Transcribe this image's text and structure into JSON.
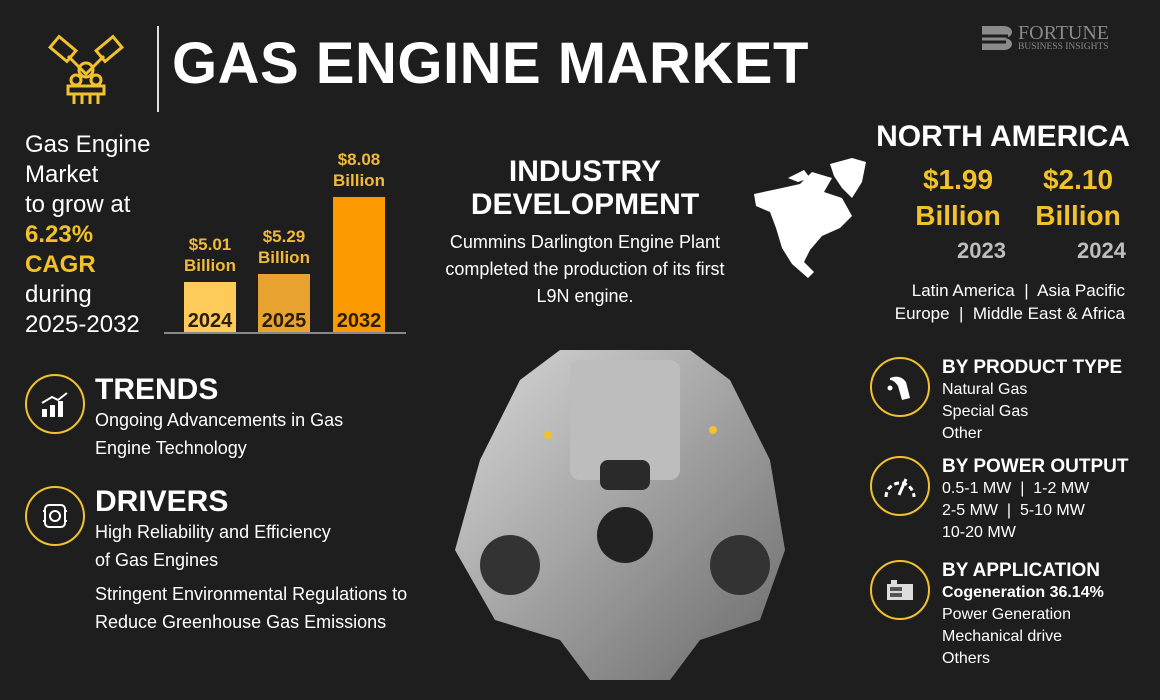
{
  "header": {
    "title": "GAS ENGINE MARKET",
    "logo_line1": "FORTUNE",
    "logo_line2": "BUSINESS INSIGHTS",
    "icon": "engine-icon"
  },
  "intro": {
    "line1": "Gas Engine",
    "line2": "Market",
    "line3": "to grow at",
    "cagr": "6.23%",
    "cagr_label": "CAGR",
    "line4": "during",
    "period": "2025-2032"
  },
  "chart_data": {
    "type": "bar",
    "categories": [
      "2024",
      "2025",
      "2032"
    ],
    "values": [
      5.01,
      5.29,
      8.08
    ],
    "labels": [
      "$5.01 Billion",
      "$5.29 Billion",
      "$8.08 Billion"
    ],
    "colors": [
      "#fecb5a",
      "#e8a22f",
      "#fb9a00"
    ],
    "unit": "Billion USD"
  },
  "industry": {
    "title_line1": "INDUSTRY",
    "title_line2": "DEVELOPMENT",
    "text": "Cummins Darlington Engine Plant completed the production of its first L9N engine."
  },
  "north_america": {
    "title": "NORTH AMERICA",
    "values": [
      {
        "amount": "$1.99",
        "unit": "Billion",
        "year": "2023"
      },
      {
        "amount": "$2.10",
        "unit": "Billion",
        "year": "2024"
      }
    ],
    "regions_line1": "Latin America  |  Asia Pacific",
    "regions_line2": "Europe  |  Middle East & Africa"
  },
  "trends": {
    "title": "TRENDS",
    "text": "Ongoing Advancements in Gas Engine Technology",
    "icon": "growth-chart-icon"
  },
  "drivers": {
    "title": "DRIVERS",
    "items": [
      "High Reliability and Efficiency of Gas Engines",
      "Stringent Environmental Regulations to Reduce Greenhouse Gas Emissions"
    ],
    "icon": "engine-icon"
  },
  "segments": [
    {
      "title": "BY PRODUCT TYPE",
      "icon": "fuel-nozzle-icon",
      "items": [
        "Natural Gas",
        "Special Gas",
        "Other"
      ]
    },
    {
      "title": "BY POWER OUTPUT",
      "icon": "gauge-icon",
      "items": [
        "0.5-1 MW  |  1-2 MW",
        "2-5 MW  |  5-10 MW",
        "10-20 MW"
      ]
    },
    {
      "title": "BY APPLICATION",
      "icon": "generator-icon",
      "highlight": "Cogeneration 36.14%",
      "items": [
        "Power Generation",
        "Mechanical drive",
        "Others"
      ]
    }
  ],
  "colors": {
    "accent": "#f2c12e",
    "background": "#1e1e1e"
  }
}
